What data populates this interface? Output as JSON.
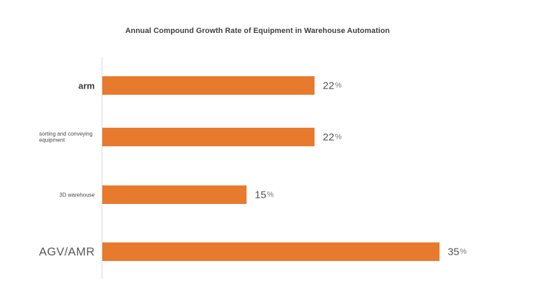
{
  "chart_data": {
    "type": "bar",
    "orientation": "horizontal",
    "title": "Annual Compound Growth Rate of Equipment in Warehouse Automation",
    "categories": [
      "arm",
      "sorting and conveying\nequipment",
      "3D warehouse",
      "AGV/AMR"
    ],
    "values": [
      22,
      22,
      15,
      35
    ],
    "unit": "%",
    "value_labels": [
      "22%",
      "22%",
      "15%",
      "35%"
    ],
    "xlim": [
      0,
      35
    ],
    "grid": false,
    "legend": false,
    "bar_color": "#e87a2e",
    "axis_color": "#d9d9d9",
    "title_color": "#3f3f3f",
    "category_label_color": "#4a4a4a",
    "value_label_color": "#525252",
    "background_color": "#ffffff"
  }
}
